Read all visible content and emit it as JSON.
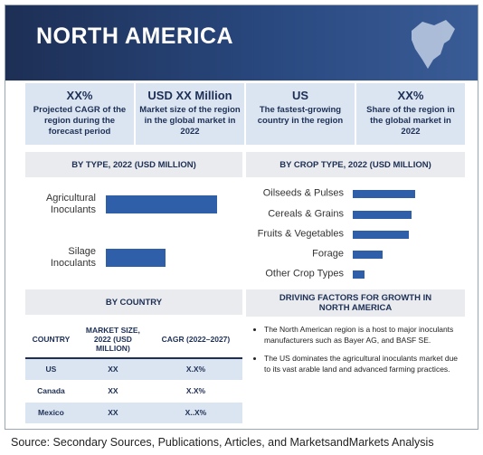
{
  "header": {
    "title": "NORTH AMERICA"
  },
  "stats": [
    {
      "value": "XX%",
      "label": "Projected CAGR of the region during the forecast period"
    },
    {
      "value": "USD XX Million",
      "label": "Market size of the region in the global market in 2022"
    },
    {
      "value": "US",
      "label": "The fastest-growing country in the region"
    },
    {
      "value": "XX%",
      "label": "Share of the region in the global market in 2022"
    }
  ],
  "chart_data": [
    {
      "type": "bar",
      "title": "BY TYPE, 2022 (USD MILLION)",
      "color": "#2e5fa8",
      "categories": [
        "Agricultural Inoculants",
        "Silage Inoculants"
      ],
      "values": [
        123,
        66
      ]
    },
    {
      "type": "bar",
      "title": "BY CROP TYPE, 2022 (USD MILLION)",
      "color": "#2e5fa8",
      "categories": [
        "Oilseeds & Pulses",
        "Cereals & Grains",
        "Fruits & Vegetables",
        "Forage",
        "Other Crop Types"
      ],
      "values": [
        69,
        65,
        62,
        33,
        13
      ]
    }
  ],
  "table": {
    "title": "BY COUNTRY",
    "header": [
      "COUNTRY",
      "MARKET SIZE, 2022 (USD MILLION)",
      "CAGR (2022–2027)"
    ],
    "rows": [
      [
        "US",
        "XX",
        "X.X%"
      ],
      [
        "Canada",
        "XX",
        "X.X%"
      ],
      [
        "Mexico",
        "XX",
        "X..X%"
      ]
    ]
  },
  "drivers": {
    "title": "DRIVING FACTORS FOR GROWTH IN NORTH AMERICA",
    "items": [
      "The North American region is a host to major inoculants manufacturers such as Bayer AG, and BASF SE.",
      "The US dominates the agricultural inoculants market due to its vast arable land and advanced farming practices."
    ]
  },
  "source": "Source: Secondary Sources, Publications, Articles, and MarketsandMarkets Analysis"
}
